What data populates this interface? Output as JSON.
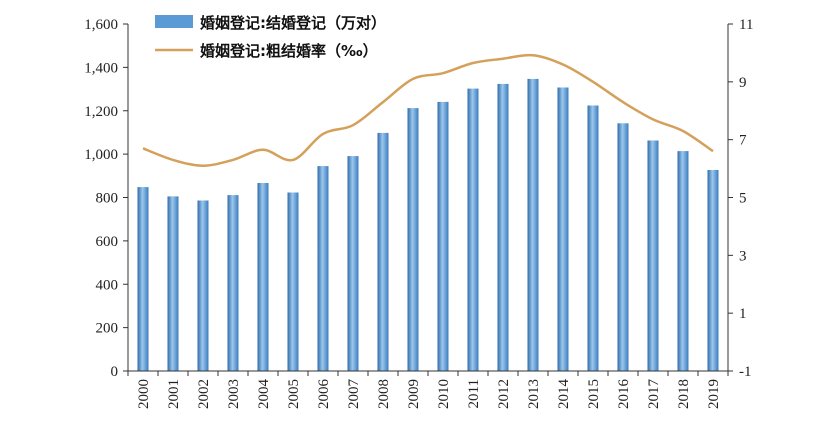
{
  "chart_data": {
    "type": "bar",
    "categories": [
      "2000",
      "2001",
      "2002",
      "2003",
      "2004",
      "2005",
      "2006",
      "2007",
      "2008",
      "2009",
      "2010",
      "2011",
      "2012",
      "2013",
      "2014",
      "2015",
      "2016",
      "2017",
      "2018",
      "2019"
    ],
    "series": [
      {
        "name": "婚姻登记:结婚登记（万对）",
        "type": "bar",
        "axis": "left",
        "color": "#5b9bd5",
        "values": [
          848,
          805,
          786,
          811,
          867,
          823,
          945,
          991,
          1098,
          1212,
          1241,
          1302,
          1324,
          1347,
          1307,
          1224,
          1142,
          1063,
          1014,
          927
        ]
      },
      {
        "name": "婚姻登记:粗结婚率（‰）",
        "type": "line",
        "axis": "right",
        "color": "#d4a05a",
        "values": [
          6.7,
          6.3,
          6.1,
          6.3,
          6.65,
          6.3,
          7.2,
          7.5,
          8.3,
          9.1,
          9.3,
          9.65,
          9.8,
          9.92,
          9.6,
          9.0,
          8.3,
          7.7,
          7.3,
          6.6
        ]
      }
    ],
    "y_left": {
      "ylim": [
        0,
        1600
      ],
      "ticks": [
        "0",
        "200",
        "400",
        "600",
        "800",
        "1,000",
        "1,200",
        "1,400",
        "1,600"
      ]
    },
    "y_right": {
      "ylim": [
        -1,
        11
      ],
      "ticks": [
        "-1",
        "1",
        "3",
        "5",
        "7",
        "9",
        "11"
      ]
    },
    "legend_position": "top-left",
    "grid": false
  }
}
